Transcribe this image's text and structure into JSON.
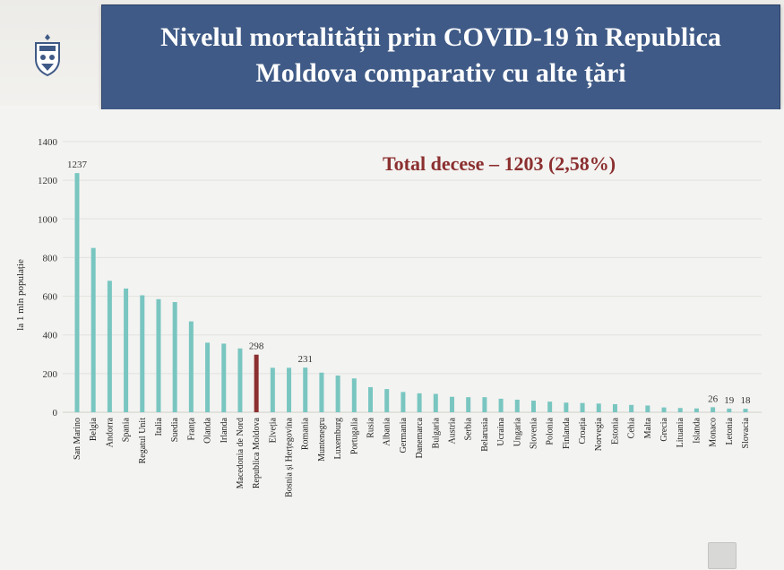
{
  "header": {
    "title_line1": "Nivelul mortalității prin COVID-19 în Republica",
    "title_line2": "Moldova comparativ cu alte țări",
    "logo_icon": "coat-of-arms-icon"
  },
  "annotation": {
    "total_label": "Total decese – 1203 (2,58%)"
  },
  "colors": {
    "title_bg": "#3f5a86",
    "bar": "#79c6c1",
    "highlight_bar": "#8b2f2f",
    "total_text": "#8b2f2f"
  },
  "chart_data": {
    "type": "bar",
    "ylabel": "la 1 mln populație",
    "ylim": [
      0,
      1400
    ],
    "yticks": [
      0,
      200,
      400,
      600,
      800,
      1000,
      1200,
      1400
    ],
    "grid": true,
    "highlight_category": "Republica Moldova",
    "categories": [
      "San Marino",
      "Belgia",
      "Andorra",
      "Spania",
      "Regatul Unit",
      "Italia",
      "Suedia",
      "Franța",
      "Olanda",
      "Irlanda",
      "Macedonia de Nord",
      "Republica Moldova",
      "Elveția",
      "Bosnia și Herțegovina",
      "Romania",
      "Muntenegru",
      "Luxemburg",
      "Portugalia",
      "Rusia",
      "Albania",
      "Germania",
      "Danemarca",
      "Bulgaria",
      "Austria",
      "Serbia",
      "Belarusia",
      "Ucraina",
      "Ungaria",
      "Slovenia",
      "Polonia",
      "Finlanda",
      "Croația",
      "Norvegia",
      "Estonia",
      "Cehia",
      "Malta",
      "Grecia",
      "Lituania",
      "Islanda",
      "Monaco",
      "Letonia",
      "Slovacia"
    ],
    "values": [
      1237,
      850,
      680,
      640,
      605,
      585,
      570,
      470,
      360,
      355,
      330,
      298,
      230,
      230,
      231,
      205,
      190,
      175,
      130,
      120,
      105,
      98,
      95,
      80,
      78,
      78,
      70,
      65,
      60,
      55,
      50,
      48,
      45,
      42,
      38,
      35,
      25,
      22,
      20,
      26,
      19,
      18
    ],
    "data_labels": [
      {
        "category": "San Marino",
        "text": "1237"
      },
      {
        "category": "Republica Moldova",
        "text": "298"
      },
      {
        "category": "Romania",
        "text": "231"
      },
      {
        "category": "Monaco",
        "text": "26"
      },
      {
        "category": "Letonia",
        "text": "19"
      },
      {
        "category": "Slovacia",
        "text": "18"
      }
    ]
  }
}
